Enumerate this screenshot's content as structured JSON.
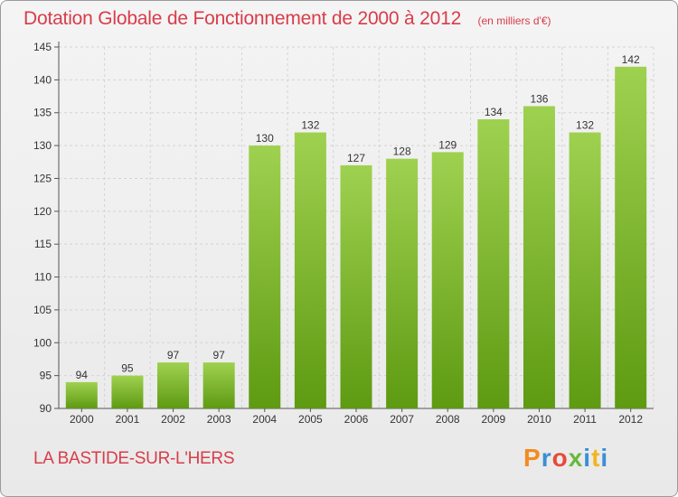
{
  "title": "Dotation Globale de Fonctionnement de 2000 à 2012",
  "subtitle": "(en milliers d'€)",
  "commune": "LA BASTIDE-SUR-L'HERS",
  "logo": "Proxiti",
  "colors": {
    "bar_light": "#9fd150",
    "bar_dark": "#5e9a12",
    "title": "#d93c4a"
  },
  "chart_data": {
    "type": "bar",
    "title": "Dotation Globale de Fonctionnement de 2000 à 2012",
    "subtitle": "(en milliers d'€)",
    "xlabel": "",
    "ylabel": "",
    "categories": [
      "2000",
      "2001",
      "2002",
      "2003",
      "2004",
      "2005",
      "2006",
      "2007",
      "2008",
      "2009",
      "2010",
      "2011",
      "2012"
    ],
    "values": [
      94,
      95,
      97,
      97,
      130,
      132,
      127,
      128,
      129,
      134,
      136,
      132,
      142
    ],
    "ylim": [
      90,
      145
    ],
    "yticks": [
      90,
      95,
      100,
      105,
      110,
      115,
      120,
      125,
      130,
      135,
      140,
      145
    ],
    "grid": true,
    "legend": "none"
  }
}
